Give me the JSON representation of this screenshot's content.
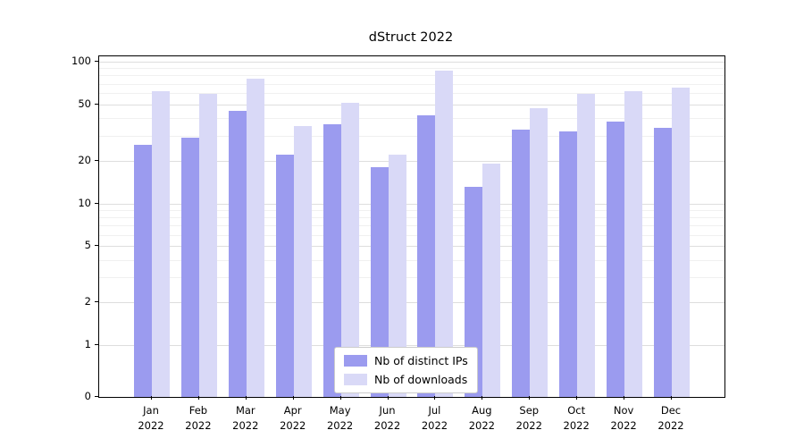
{
  "chart_data": {
    "type": "bar",
    "title": "dStruct 2022",
    "categories": [
      "Jan",
      "Feb",
      "Mar",
      "Apr",
      "May",
      "Jun",
      "Jul",
      "Aug",
      "Sep",
      "Oct",
      "Nov",
      "Dec"
    ],
    "year": "2022",
    "series": [
      {
        "name": "Nb of distinct IPs",
        "slug": "distinct-ips",
        "color": "#9b9bef",
        "values": [
          26,
          29,
          45,
          22,
          36,
          18,
          42,
          13,
          33,
          32,
          38,
          34
        ]
      },
      {
        "name": "Nb of downloads",
        "slug": "downloads",
        "color": "#d9d9f7",
        "values": [
          62,
          59,
          76,
          35,
          51,
          22,
          86,
          19,
          47,
          59,
          62,
          66
        ]
      }
    ],
    "yscale": "symlog",
    "ylim": [
      0,
      100
    ],
    "y_ticks": [
      0,
      1,
      2,
      5,
      10,
      20,
      50,
      100
    ],
    "y_minor_ticks": [
      3,
      4,
      6,
      7,
      8,
      9,
      30,
      40,
      60,
      70,
      80,
      90
    ],
    "grid": "horizontal",
    "legend_position": "lower center"
  }
}
